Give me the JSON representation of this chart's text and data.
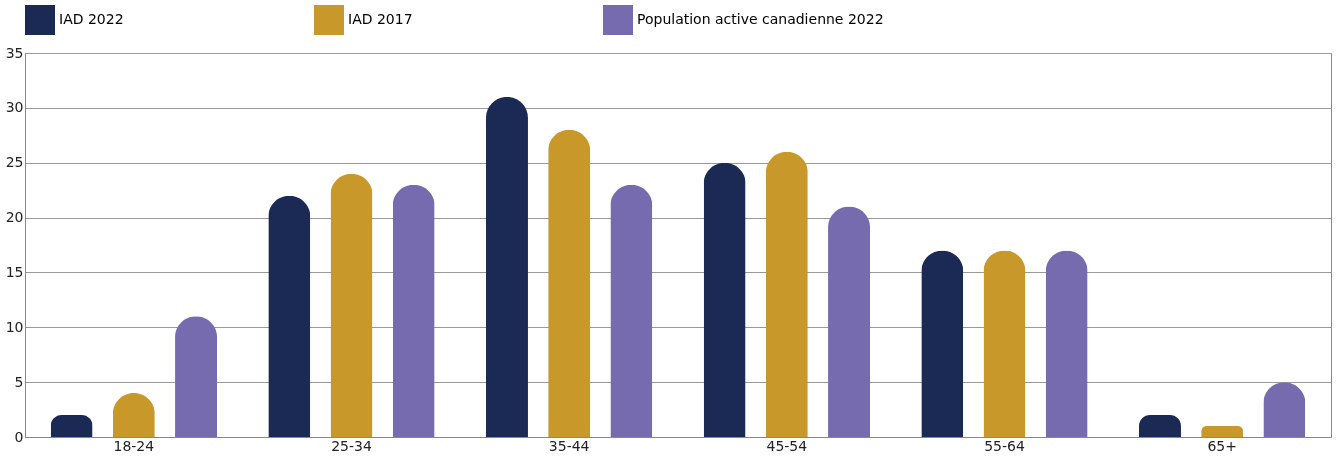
{
  "chart_data": {
    "type": "bar",
    "categories": [
      "18-24",
      "25-34",
      "35-44",
      "45-54",
      "55-64",
      "65+"
    ],
    "series": [
      {
        "name": "IAD 2022",
        "color": "#1b2a55",
        "values": [
          2,
          22,
          31,
          25,
          17,
          2
        ]
      },
      {
        "name": "IAD 2017",
        "color": "#c8982a",
        "values": [
          4,
          24,
          28,
          26,
          17,
          1
        ]
      },
      {
        "name": "Population active canadienne 2022",
        "color": "#776bb0",
        "values": [
          11,
          23,
          23,
          21,
          17,
          5
        ]
      }
    ],
    "ylim": [
      0,
      35
    ],
    "yticks": [
      0,
      5,
      10,
      15,
      20,
      25,
      30,
      35
    ],
    "grid": "y",
    "legend": "top left"
  }
}
